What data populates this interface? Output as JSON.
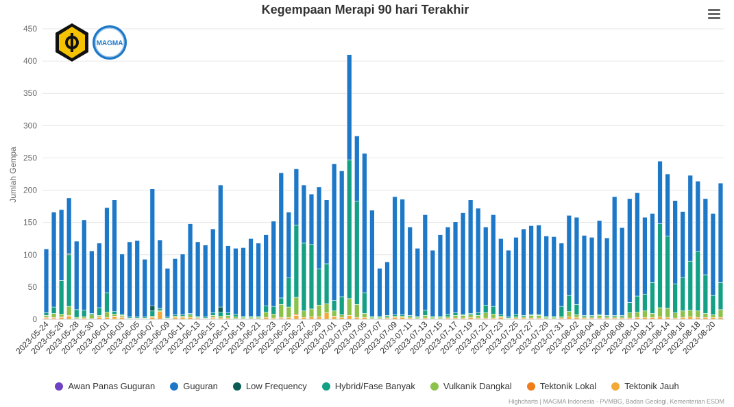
{
  "chart_data": {
    "type": "bar",
    "stacked": true,
    "title": "Kegempaan Merapi 90 hari Terakhir",
    "ylabel": "Jumlah Gempa",
    "xlabel": "",
    "ylim": [
      0,
      450
    ],
    "yticks": [
      0,
      50,
      100,
      150,
      200,
      250,
      300,
      350,
      400,
      450
    ],
    "grid": true,
    "legend_position": "bottom",
    "x_tick_labels": [
      "2023-05-24",
      "2023-05-26",
      "2023-05-28",
      "2023-05-30",
      "2023-06-01",
      "2023-06-03",
      "2023-06-05",
      "2023-06-07",
      "2023-06-09",
      "2023-06-11",
      "2023-06-13",
      "2023-06-15",
      "2023-06-17",
      "2023-06-19",
      "2023-06-21",
      "2023-06-23",
      "2023-06-25",
      "2023-06-27",
      "2023-06-29",
      "2023-07-01",
      "2023-07-03",
      "2023-07-05",
      "2023-07-07",
      "2023-07-09",
      "2023-07-11",
      "2023-07-13",
      "2023-07-15",
      "2023-07-17",
      "2023-07-19",
      "2023-07-21",
      "2023-07-23",
      "2023-07-25",
      "2023-07-27",
      "2023-07-29",
      "2023-07-31",
      "2023-08-02",
      "2023-08-04",
      "2023-08-06",
      "2023-08-08",
      "2023-08-10",
      "2023-08-12",
      "2023-08-14",
      "2023-08-16",
      "2023-08-18",
      "2023-08-20"
    ],
    "totals": [
      109,
      166,
      170,
      188,
      121,
      154,
      106,
      118,
      173,
      185,
      101,
      120,
      122,
      93,
      202,
      123,
      79,
      94,
      101,
      148,
      120,
      115,
      140,
      208,
      114,
      110,
      111,
      125,
      118,
      131,
      152,
      227,
      166,
      233,
      208,
      194,
      205,
      185,
      241,
      230,
      410,
      284,
      257,
      169,
      79,
      89,
      190,
      186,
      143,
      110,
      162,
      107,
      131,
      143,
      151,
      165,
      185,
      172,
      143,
      162,
      125,
      107,
      127,
      140,
      145,
      146,
      129,
      128,
      118,
      161,
      158,
      130,
      127,
      153,
      126,
      190,
      142,
      187,
      196,
      158,
      164,
      245,
      225,
      184,
      167,
      223,
      214,
      187,
      164,
      211
    ],
    "hybrid": [
      4,
      10,
      52,
      80,
      12,
      10,
      2,
      12,
      30,
      4,
      2,
      2,
      2,
      2,
      8,
      3,
      2,
      2,
      2,
      2,
      2,
      2,
      4,
      6,
      4,
      4,
      2,
      2,
      2,
      10,
      12,
      10,
      45,
      112,
      105,
      100,
      56,
      62,
      16,
      28,
      215,
      160,
      32,
      2,
      2,
      2,
      2,
      2,
      2,
      2,
      8,
      2,
      2,
      4,
      4,
      2,
      2,
      4,
      12,
      12,
      2,
      2,
      4,
      2,
      2,
      2,
      2,
      2,
      16,
      25,
      16,
      2,
      2,
      2,
      2,
      2,
      2,
      16,
      25,
      26,
      48,
      130,
      112,
      45,
      52,
      76,
      92,
      60,
      30,
      42
    ],
    "vulkanik": [
      3,
      6,
      4,
      14,
      2,
      2,
      6,
      2,
      8,
      3,
      2,
      1,
      1,
      1,
      2,
      2,
      1,
      2,
      2,
      4,
      1,
      1,
      3,
      3,
      4,
      3,
      2,
      2,
      2,
      8,
      6,
      20,
      16,
      26,
      10,
      12,
      18,
      14,
      8,
      4,
      26,
      20,
      6,
      2,
      2,
      2,
      2,
      2,
      2,
      2,
      4,
      2,
      2,
      2,
      4,
      4,
      4,
      4,
      8,
      6,
      2,
      1,
      2,
      2,
      4,
      4,
      2,
      2,
      2,
      8,
      4,
      2,
      2,
      4,
      2,
      2,
      2,
      8,
      8,
      10,
      6,
      14,
      14,
      8,
      10,
      10,
      10,
      6,
      4,
      12
    ],
    "low_frequency": [
      0,
      0,
      0,
      2,
      0,
      0,
      0,
      0,
      0,
      0,
      0,
      0,
      0,
      0,
      8,
      0,
      0,
      0,
      0,
      0,
      0,
      0,
      0,
      8,
      0,
      0,
      0,
      0,
      0,
      0,
      0,
      0,
      0,
      0,
      0,
      0,
      0,
      0,
      0,
      0,
      0,
      0,
      0,
      0,
      0,
      0,
      0,
      0,
      0,
      0,
      0,
      0,
      0,
      0,
      0,
      0,
      0,
      0,
      0,
      0,
      0,
      0,
      0,
      0,
      0,
      0,
      0,
      0,
      0,
      0,
      0,
      0,
      0,
      0,
      0,
      0,
      0,
      0,
      0,
      0,
      0,
      0,
      0,
      0,
      0,
      0,
      0,
      0,
      0,
      0
    ],
    "tektonik_lokal": [
      1,
      1,
      1,
      1,
      0,
      0,
      0,
      1,
      0,
      1,
      1,
      0,
      0,
      0,
      0,
      0,
      0,
      0,
      0,
      0,
      0,
      0,
      1,
      0,
      0,
      0,
      0,
      0,
      0,
      0,
      0,
      1,
      0,
      2,
      0,
      0,
      0,
      0,
      1,
      0,
      0,
      0,
      0,
      0,
      0,
      0,
      0,
      0,
      0,
      0,
      0,
      0,
      0,
      0,
      0,
      0,
      0,
      0,
      0,
      0,
      0,
      0,
      0,
      0,
      0,
      0,
      0,
      0,
      0,
      0,
      0,
      0,
      0,
      0,
      0,
      0,
      0,
      0,
      0,
      0,
      0,
      0,
      0,
      0,
      0,
      0,
      0,
      0,
      0,
      0
    ],
    "tektonik_jauh": [
      2,
      2,
      3,
      5,
      1,
      2,
      1,
      3,
      3,
      4,
      3,
      1,
      1,
      1,
      3,
      12,
      1,
      3,
      3,
      3,
      2,
      1,
      2,
      2,
      2,
      1,
      1,
      1,
      1,
      3,
      2,
      2,
      3,
      6,
      3,
      4,
      4,
      10,
      4,
      3,
      6,
      3,
      3,
      1,
      1,
      2,
      3,
      3,
      2,
      1,
      2,
      1,
      1,
      2,
      2,
      2,
      3,
      2,
      2,
      2,
      3,
      1,
      2,
      2,
      2,
      2,
      1,
      1,
      2,
      4,
      3,
      2,
      2,
      2,
      2,
      2,
      2,
      2,
      3,
      3,
      3,
      4,
      3,
      2,
      3,
      4,
      3,
      3,
      3,
      3
    ],
    "series": [
      {
        "name": "Awan Panas Guguran",
        "color": "#6f42c1"
      },
      {
        "name": "Guguran",
        "color": "#1e78c8"
      },
      {
        "name": "Low Frequency",
        "color": "#0b5c55"
      },
      {
        "name": "Hybrid/Fase Banyak",
        "color": "#13a085"
      },
      {
        "name": "Vulkanik Dangkal",
        "color": "#8cc24a"
      },
      {
        "name": "Tektonik Lokal",
        "color": "#f07c1a"
      },
      {
        "name": "Tektonik Jauh",
        "color": "#f2a936"
      }
    ]
  },
  "menu": {
    "icon": "hamburger-menu-icon"
  },
  "logos": [
    {
      "icon": "esdm-logo"
    },
    {
      "icon": "magma-logo",
      "text": "MAGMA"
    }
  ],
  "credits": "Highcharts | MAGMA Indonesia - PVMBG, Badan Geologi, Kementerian ESDM"
}
